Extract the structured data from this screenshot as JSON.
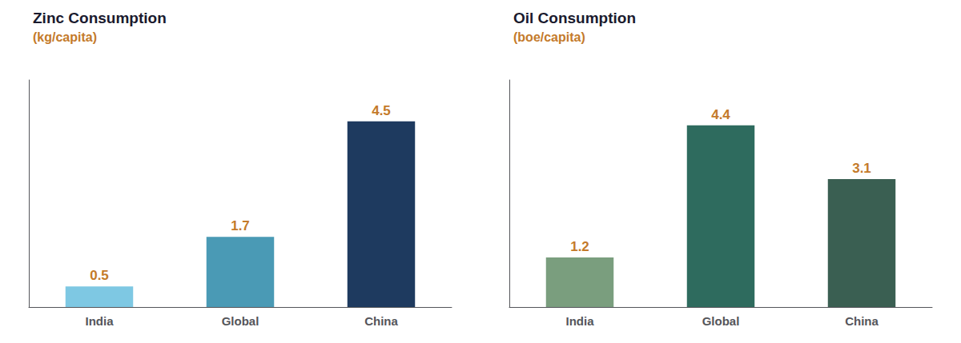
{
  "chart_data": [
    {
      "type": "bar",
      "title": "Zinc Consumption",
      "subtitle": "(kg/capita)",
      "categories": [
        "India",
        "Global",
        "China"
      ],
      "values": [
        0.5,
        1.7,
        4.5
      ],
      "colors": [
        "#7ec8e3",
        "#4a9ab5",
        "#1e3a5f"
      ],
      "ylim": [
        0,
        5.5
      ],
      "grid": false,
      "data_labels": true,
      "tick_labels": "x"
    },
    {
      "type": "bar",
      "title": "Oil Consumption",
      "subtitle": "(boe/capita)",
      "categories": [
        "India",
        "Global",
        "China"
      ],
      "values": [
        1.2,
        4.4,
        3.1
      ],
      "colors": [
        "#7a9e7e",
        "#2e6b5e",
        "#3a5f52"
      ],
      "ylim": [
        0,
        5.5
      ],
      "grid": false,
      "data_labels": true,
      "tick_labels": "x"
    }
  ]
}
